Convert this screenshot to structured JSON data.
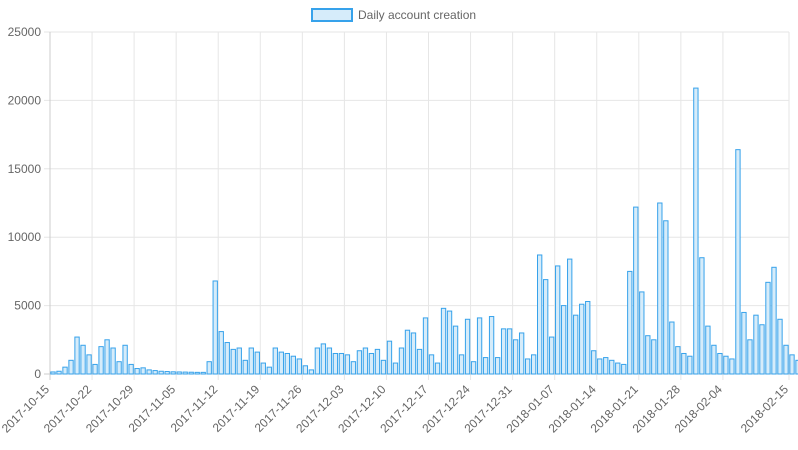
{
  "chart_data": {
    "type": "bar",
    "legend": {
      "position": "top",
      "entries": [
        "Daily account creation"
      ]
    },
    "colors": {
      "bar_fill": "#d6ecfa",
      "bar_stroke": "#36a2eb",
      "grid": "#e6e6e6",
      "text": "#666666"
    },
    "grid": true,
    "ylim": [
      0,
      25000
    ],
    "y_ticks": [
      "0",
      "5000",
      "10000",
      "15000",
      "20000",
      "25000"
    ],
    "x_ticks": [
      "2017-10-15",
      "2017-10-22",
      "2017-10-29",
      "2017-11-05",
      "2017-11-12",
      "2017-11-19",
      "2017-11-26",
      "2017-12-03",
      "2017-12-10",
      "2017-12-17",
      "2017-12-24",
      "2017-12-31",
      "2018-01-07",
      "2018-01-14",
      "2018-01-21",
      "2018-01-28",
      "2018-02-04",
      "2018-02-15"
    ],
    "x_range": [
      "2017-10-15",
      "2018-02-15"
    ],
    "series": [
      {
        "name": "Daily account creation",
        "start_date": "2017-10-15",
        "values": [
          150,
          200,
          500,
          1000,
          2700,
          2100,
          1400,
          700,
          2000,
          2500,
          1900,
          900,
          2100,
          700,
          400,
          450,
          300,
          250,
          200,
          180,
          160,
          150,
          140,
          130,
          120,
          120,
          900,
          6800,
          3100,
          2300,
          1800,
          1900,
          1000,
          1900,
          1600,
          800,
          500,
          1900,
          1600,
          1500,
          1300,
          1100,
          600,
          300,
          1900,
          2200,
          1900,
          1500,
          1500,
          1400,
          900,
          1700,
          1900,
          1500,
          1800,
          1000,
          2400,
          800,
          1900,
          3200,
          3000,
          1800,
          4100,
          1400,
          800,
          4800,
          4600,
          3500,
          1400,
          4000,
          900,
          4100,
          1200,
          4200,
          1200,
          3300,
          3300,
          2500,
          3000,
          1100,
          1400,
          8700,
          6900,
          2700,
          7900,
          5000,
          8400,
          4300,
          5100,
          5300,
          1700,
          1100,
          1200,
          1000,
          800,
          700,
          7500,
          12200,
          6000,
          2800,
          2500,
          12500,
          11200,
          3800,
          2000,
          1500,
          1300,
          20900,
          8500,
          3500,
          2100,
          1500,
          1300,
          1100,
          16400,
          4500,
          2500,
          4300,
          3600,
          6700,
          7800,
          4000,
          2100,
          1400,
          1000
        ]
      }
    ]
  }
}
